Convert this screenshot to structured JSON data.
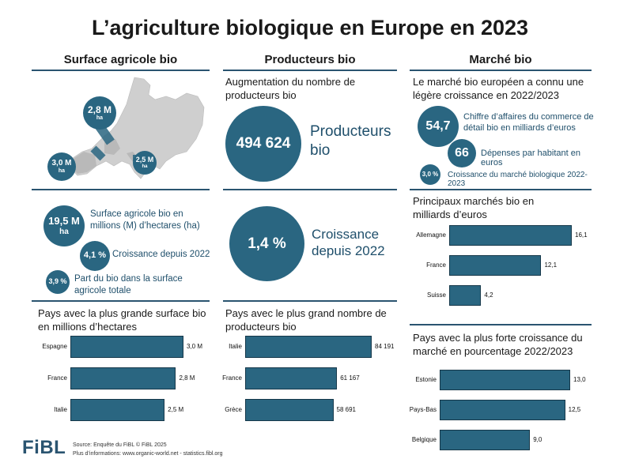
{
  "title": "L’agriculture biologique en Europe en 2023",
  "columns": {
    "surface": "Surface agricole bio",
    "producers": "Producteurs bio",
    "market": "Marché bio"
  },
  "map_bubbles": [
    {
      "value": "2,8 M",
      "unit": "ha"
    },
    {
      "value": "3,0 M",
      "unit": "ha"
    },
    {
      "value": "2,5 M",
      "unit": "ha"
    }
  ],
  "surface_stats": {
    "total_value": "19,5 M",
    "total_unit": "ha",
    "total_label": "Surface agricole bio en millions (M) d’hectares (ha)",
    "growth_value": "4,1 %",
    "growth_label": "Croissance depuis 2022",
    "share_value": "3,9 %",
    "share_label": "Part du bio dans la surface agricole totale"
  },
  "producer_stats": {
    "intro": "Augmentation du nombre de producteurs bio",
    "count_value": "494 624",
    "count_label": "Producteurs bio",
    "growth_value": "1,4 %",
    "growth_label": "Croissance depuis 2022"
  },
  "market_stats": {
    "intro": "Le marché bio européen a connu une légère croissance en 2022/2023",
    "turnover_value": "54,7",
    "turnover_label": "Chiffre d’affaires du commerce de détail bio en milliards d’euros",
    "per_capita_value": "66",
    "per_capita_label": "Dépenses par habitant en euros",
    "growth_value": "3,0 %",
    "growth_label": "Croissance du marché biologique 2022-2023"
  },
  "chart_data": [
    {
      "type": "bar",
      "orientation": "horizontal",
      "title": "Pays avec la plus grande surface bio en millions d’hectares",
      "categories": [
        "Espagne",
        "France",
        "Italie"
      ],
      "values": [
        3.0,
        2.8,
        2.5
      ],
      "value_labels": [
        "3,0 M",
        "2,8 M",
        "2,5 M"
      ],
      "xlim": [
        0,
        3.0
      ],
      "color": "#2a6681"
    },
    {
      "type": "bar",
      "orientation": "horizontal",
      "title": "Pays avec le plus grand nombre de producteurs bio",
      "categories": [
        "Italie",
        "France",
        "Grèce"
      ],
      "values": [
        84191,
        61167,
        58691
      ],
      "value_labels": [
        "84 191",
        "61 167",
        "58 691"
      ],
      "xlim": [
        0,
        84191
      ],
      "color": "#2a6681"
    },
    {
      "type": "bar",
      "orientation": "horizontal",
      "title": "Principaux marchés bio en milliards d’euros",
      "categories": [
        "Allemagne",
        "France",
        "Suisse"
      ],
      "values": [
        16.1,
        12.1,
        4.2
      ],
      "value_labels": [
        "16,1",
        "12,1",
        "4,2"
      ],
      "xlim": [
        0,
        16.1
      ],
      "color": "#2a6681"
    },
    {
      "type": "bar",
      "orientation": "horizontal",
      "title": "Pays avec la plus forte croissance du marché en pourcentage 2022/2023",
      "categories": [
        "Estonie",
        "Pays-Bas",
        "Belgique"
      ],
      "values": [
        13.0,
        12.5,
        9.0
      ],
      "value_labels": [
        "13,0",
        "12,5",
        "9,0"
      ],
      "xlim": [
        0,
        13.0
      ],
      "color": "#2a6681"
    }
  ],
  "footer": {
    "logo": "FiBL",
    "source": "Source: Enquête du FiBL © FiBL 2025",
    "more_info": "Plus d’informations: www.organic-world.net - statistics.fibl.org"
  }
}
